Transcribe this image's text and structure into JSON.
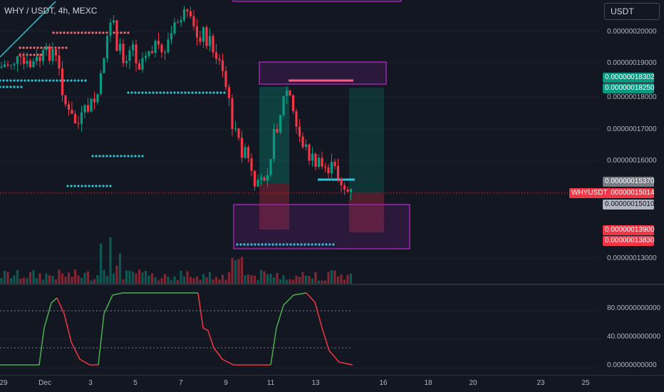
{
  "symbol_title": "WHY / USDT, 4h, MEXC",
  "currency_button": "USDT",
  "price_axis_ticks": [
    "0.00000020000",
    "0.00000019000",
    "0.00000018000",
    "0.00000017000",
    "0.00000016000",
    "0.00000013000"
  ],
  "price_tags": {
    "tag_18302": "0.00000018302",
    "tag_18250": "0.00000018250",
    "tag_15370": "0.00000015370",
    "last_price": "0.00000015014",
    "tag_15010": "0.00000015010",
    "tag_13900": "0.00000013900",
    "tag_13830": "0.00000013830"
  },
  "symbol_tag": "WHYUSDT",
  "oscillator_ticks": [
    "80.00000000000",
    "40.00000000000",
    "0.00000000000"
  ],
  "time_labels": [
    "29",
    "Dec",
    "3",
    "5",
    "7",
    "9",
    "11",
    "13",
    "16",
    "18",
    "20",
    "23",
    "25"
  ],
  "colors": {
    "background": "#131722",
    "bull": "#089981",
    "bear": "#f23645",
    "dots_cyan": "#2ec4d6",
    "dots_red": "#f06a74",
    "zone_purple": "#9c27b0",
    "oscillator_up": "#4caf50",
    "oscillator_down": "#f23645"
  }
}
